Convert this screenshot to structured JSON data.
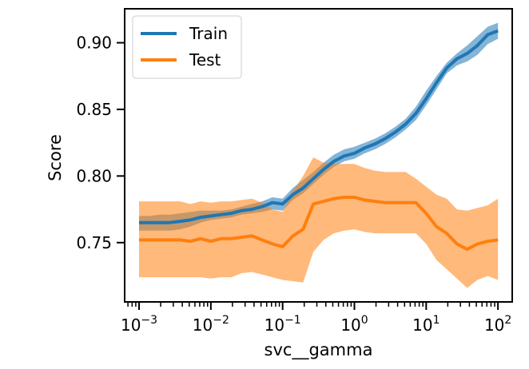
{
  "chart_data": {
    "type": "line",
    "xlabel": "svc__gamma",
    "ylabel": "Score",
    "x_scale": "log",
    "xlim": [
      0.00063,
      158
    ],
    "ylim": [
      0.7055,
      0.9255
    ],
    "x_ticks": [
      {
        "value": 0.001,
        "base": "10",
        "exp": "−3"
      },
      {
        "value": 0.01,
        "base": "10",
        "exp": "−2"
      },
      {
        "value": 0.1,
        "base": "10",
        "exp": "−1"
      },
      {
        "value": 1,
        "base": "10",
        "exp": "0"
      },
      {
        "value": 10,
        "base": "10",
        "exp": "1"
      },
      {
        "value": 100,
        "base": "10",
        "exp": "2"
      }
    ],
    "y_ticks": [
      {
        "value": 0.75,
        "label": "0.75"
      },
      {
        "value": 0.8,
        "label": "0.80"
      },
      {
        "value": 0.85,
        "label": "0.85"
      },
      {
        "value": 0.9,
        "label": "0.90"
      }
    ],
    "x": [
      0.001,
      0.00139,
      0.00193,
      0.00268,
      0.00373,
      0.00518,
      0.0072,
      0.01,
      0.0139,
      0.0193,
      0.0268,
      0.0373,
      0.0518,
      0.072,
      0.1,
      0.139,
      0.193,
      0.268,
      0.373,
      0.518,
      0.72,
      1,
      1.39,
      1.93,
      2.68,
      3.73,
      5.18,
      7.2,
      10,
      13.9,
      19.3,
      26.8,
      37.3,
      51.8,
      72,
      100
    ],
    "series": [
      {
        "name": "Train",
        "color": "#1f77b4",
        "mean": [
          0.765,
          0.765,
          0.765,
          0.765,
          0.766,
          0.767,
          0.769,
          0.77,
          0.771,
          0.772,
          0.774,
          0.775,
          0.777,
          0.78,
          0.779,
          0.786,
          0.791,
          0.798,
          0.805,
          0.811,
          0.815,
          0.817,
          0.821,
          0.824,
          0.828,
          0.833,
          0.839,
          0.847,
          0.858,
          0.87,
          0.881,
          0.888,
          0.892,
          0.898,
          0.906,
          0.909
        ],
        "lower": [
          0.759,
          0.759,
          0.759,
          0.759,
          0.76,
          0.762,
          0.765,
          0.767,
          0.768,
          0.769,
          0.771,
          0.772,
          0.773,
          0.775,
          0.774,
          0.782,
          0.787,
          0.794,
          0.801,
          0.807,
          0.811,
          0.813,
          0.817,
          0.82,
          0.824,
          0.829,
          0.835,
          0.842,
          0.853,
          0.865,
          0.877,
          0.883,
          0.886,
          0.891,
          0.899,
          0.903
        ],
        "upper": [
          0.77,
          0.77,
          0.771,
          0.771,
          0.772,
          0.773,
          0.774,
          0.774,
          0.774,
          0.775,
          0.777,
          0.779,
          0.781,
          0.784,
          0.783,
          0.791,
          0.797,
          0.803,
          0.81,
          0.816,
          0.82,
          0.822,
          0.825,
          0.828,
          0.832,
          0.837,
          0.843,
          0.852,
          0.864,
          0.875,
          0.885,
          0.892,
          0.898,
          0.905,
          0.912,
          0.915
        ]
      },
      {
        "name": "Test",
        "color": "#ff7f0e",
        "mean": [
          0.752,
          0.752,
          0.752,
          0.752,
          0.752,
          0.751,
          0.753,
          0.751,
          0.753,
          0.753,
          0.754,
          0.755,
          0.752,
          0.749,
          0.747,
          0.755,
          0.76,
          0.779,
          0.781,
          0.783,
          0.784,
          0.784,
          0.782,
          0.781,
          0.78,
          0.78,
          0.78,
          0.78,
          0.772,
          0.762,
          0.757,
          0.749,
          0.745,
          0.749,
          0.751,
          0.752
        ],
        "lower": [
          0.724,
          0.724,
          0.724,
          0.724,
          0.724,
          0.724,
          0.724,
          0.723,
          0.724,
          0.724,
          0.727,
          0.728,
          0.726,
          0.724,
          0.722,
          0.721,
          0.72,
          0.743,
          0.752,
          0.757,
          0.759,
          0.76,
          0.758,
          0.757,
          0.757,
          0.757,
          0.757,
          0.757,
          0.749,
          0.737,
          0.73,
          0.723,
          0.716,
          0.722,
          0.725,
          0.722
        ],
        "upper": [
          0.781,
          0.781,
          0.781,
          0.781,
          0.781,
          0.779,
          0.781,
          0.78,
          0.781,
          0.781,
          0.782,
          0.783,
          0.78,
          0.775,
          0.773,
          0.789,
          0.8,
          0.814,
          0.81,
          0.809,
          0.809,
          0.809,
          0.806,
          0.804,
          0.803,
          0.803,
          0.803,
          0.798,
          0.792,
          0.786,
          0.783,
          0.775,
          0.774,
          0.776,
          0.778,
          0.783
        ]
      }
    ],
    "legend": {
      "position": "top-left",
      "items": [
        "Train",
        "Test"
      ]
    },
    "grid": false
  }
}
